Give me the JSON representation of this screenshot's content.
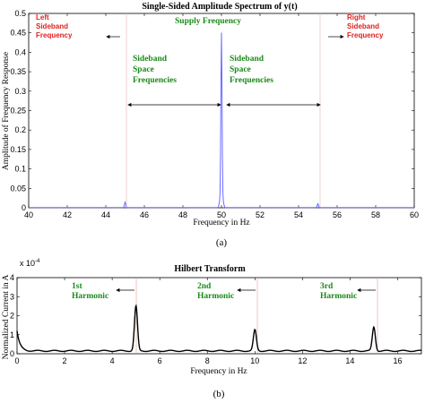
{
  "chart_data": [
    {
      "type": "line",
      "title": "Single-Sided Amplitude Spectrum of y(t)",
      "xlabel": "Frequency in Hz",
      "ylabel": "Amplitude of Frequency Response",
      "xlim": [
        40,
        60
      ],
      "ylim": [
        0,
        0.5
      ],
      "xticks": [
        "40",
        "42",
        "44",
        "46",
        "48",
        "50",
        "52",
        "54",
        "56",
        "58",
        "60"
      ],
      "yticks": [
        "0",
        "0.05",
        "0.1",
        "0.15",
        "0.2",
        "0.25",
        "0.3",
        "0.35",
        "0.4",
        "0.45",
        "0.5"
      ],
      "series_color": "#6b6bff",
      "peaks": [
        {
          "x": 45,
          "y": 0.014
        },
        {
          "x": 49.9,
          "y": 0.012
        },
        {
          "x": 50,
          "y": 0.45
        },
        {
          "x": 50.1,
          "y": 0.012
        },
        {
          "x": 55,
          "y": 0.01
        }
      ],
      "annotations": {
        "supply": "Supply Frequency",
        "left_sideband": [
          "Left",
          "Sideband",
          "Frequency"
        ],
        "right_sideband": [
          "Right",
          "Sideband",
          "Frequency"
        ],
        "space_left": [
          "Sideband",
          "Space",
          "Frequencies"
        ],
        "space_right": [
          "Sideband",
          "Space",
          "Frequencies"
        ]
      },
      "panel_label": "(a)"
    },
    {
      "type": "line",
      "title": "Hilbert Transform",
      "xlabel": "Frequency in Hz",
      "ylabel": "Normalized Current in A",
      "xlim": [
        0,
        17
      ],
      "ylim": [
        0,
        4
      ],
      "y_multiplier": "x 10",
      "y_exponent": "-4",
      "xticks": [
        "0",
        "2",
        "4",
        "6",
        "8",
        "10",
        "12",
        "14",
        "16"
      ],
      "yticks": [
        "0",
        "1",
        "2",
        "3",
        "4"
      ],
      "series_color": "#000000",
      "peaks": [
        {
          "x": 5,
          "y": 2.5
        },
        {
          "x": 10,
          "y": 1.25
        },
        {
          "x": 15,
          "y": 1.4
        }
      ],
      "baseline": 0.15,
      "start_value": 1.2,
      "annotations": {
        "h1": [
          "1st",
          "Harmonic"
        ],
        "h2": [
          "2nd",
          "Harmonic"
        ],
        "h3": [
          "3rd",
          "Harmonic"
        ]
      },
      "panel_label": "(b)"
    }
  ]
}
